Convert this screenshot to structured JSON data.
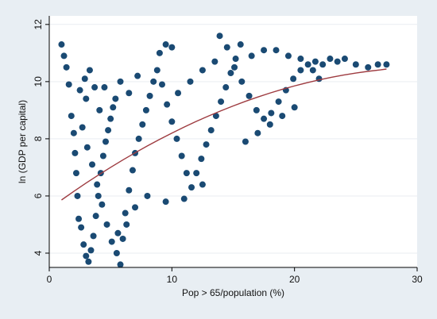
{
  "chart_data": {
    "type": "scatter",
    "title": "",
    "xlabel": "Pop > 65/population (%)",
    "ylabel": "ln (GDP per capital)",
    "xlim": [
      0,
      30
    ],
    "ylim": [
      3.5,
      12.3
    ],
    "xticks": [
      0,
      10,
      20,
      30
    ],
    "yticks": [
      4,
      6,
      8,
      10,
      12
    ],
    "grid": true,
    "legend": "none",
    "colors": {
      "outer_background": "#e8eef3",
      "plot_background": "#ffffff",
      "gridline": "#e9eef2",
      "points": "#1a4a73",
      "fit_line": "#9e3b40"
    },
    "series": [
      {
        "kind": "points",
        "points": [
          [
            1.0,
            11.3
          ],
          [
            1.2,
            10.9
          ],
          [
            1.4,
            10.5
          ],
          [
            1.6,
            9.9
          ],
          [
            1.8,
            8.8
          ],
          [
            2.0,
            8.2
          ],
          [
            2.1,
            7.5
          ],
          [
            2.2,
            6.8
          ],
          [
            2.3,
            6.0
          ],
          [
            2.4,
            5.2
          ],
          [
            2.6,
            4.9
          ],
          [
            2.8,
            4.3
          ],
          [
            3.0,
            3.9
          ],
          [
            3.2,
            3.7
          ],
          [
            3.4,
            4.1
          ],
          [
            3.6,
            4.6
          ],
          [
            3.8,
            5.3
          ],
          [
            4.0,
            6.0
          ],
          [
            4.2,
            6.8
          ],
          [
            4.4,
            7.4
          ],
          [
            4.6,
            7.9
          ],
          [
            4.8,
            8.3
          ],
          [
            5.0,
            8.7
          ],
          [
            5.2,
            9.1
          ],
          [
            5.4,
            9.4
          ],
          [
            2.5,
            9.7
          ],
          [
            2.9,
            10.1
          ],
          [
            3.3,
            10.4
          ],
          [
            3.7,
            9.8
          ],
          [
            4.1,
            9.0
          ],
          [
            2.7,
            8.4
          ],
          [
            3.1,
            7.7
          ],
          [
            3.5,
            7.1
          ],
          [
            3.9,
            6.4
          ],
          [
            4.3,
            5.7
          ],
          [
            4.7,
            5.0
          ],
          [
            5.1,
            4.4
          ],
          [
            5.5,
            4.0
          ],
          [
            5.8,
            3.6
          ],
          [
            6.0,
            4.5
          ],
          [
            6.2,
            5.4
          ],
          [
            6.5,
            6.2
          ],
          [
            6.8,
            6.9
          ],
          [
            7.0,
            7.5
          ],
          [
            7.3,
            8.0
          ],
          [
            7.6,
            8.5
          ],
          [
            7.9,
            9.0
          ],
          [
            8.2,
            9.5
          ],
          [
            8.5,
            10.0
          ],
          [
            8.8,
            10.4
          ],
          [
            9.0,
            11.0
          ],
          [
            9.5,
            11.3
          ],
          [
            10.0,
            11.2
          ],
          [
            9.2,
            9.9
          ],
          [
            9.6,
            9.2
          ],
          [
            10.0,
            8.6
          ],
          [
            10.4,
            8.0
          ],
          [
            10.8,
            7.4
          ],
          [
            11.2,
            6.8
          ],
          [
            11.6,
            6.3
          ],
          [
            12.0,
            6.8
          ],
          [
            12.4,
            7.3
          ],
          [
            12.8,
            7.8
          ],
          [
            13.2,
            8.3
          ],
          [
            13.6,
            8.8
          ],
          [
            14.0,
            9.3
          ],
          [
            14.4,
            9.8
          ],
          [
            14.8,
            10.3
          ],
          [
            15.2,
            10.8
          ],
          [
            15.6,
            11.3
          ],
          [
            13.9,
            11.6
          ],
          [
            14.5,
            11.2
          ],
          [
            15.1,
            10.5
          ],
          [
            15.7,
            10.0
          ],
          [
            16.3,
            9.5
          ],
          [
            16.9,
            9.0
          ],
          [
            17.5,
            8.7
          ],
          [
            18.1,
            8.9
          ],
          [
            18.7,
            9.3
          ],
          [
            19.3,
            9.7
          ],
          [
            19.9,
            10.1
          ],
          [
            20.5,
            10.4
          ],
          [
            21.1,
            10.6
          ],
          [
            21.7,
            10.7
          ],
          [
            22.3,
            10.6
          ],
          [
            22.9,
            10.8
          ],
          [
            23.5,
            10.7
          ],
          [
            24.1,
            10.8
          ],
          [
            25.0,
            10.6
          ],
          [
            26.0,
            10.5
          ],
          [
            26.8,
            10.6
          ],
          [
            27.5,
            10.6
          ],
          [
            16.0,
            7.9
          ],
          [
            17.0,
            8.2
          ],
          [
            18.0,
            8.5
          ],
          [
            19.0,
            8.8
          ],
          [
            20.0,
            9.1
          ],
          [
            12.5,
            6.4
          ],
          [
            11.0,
            5.9
          ],
          [
            9.5,
            5.8
          ],
          [
            8.0,
            6.0
          ],
          [
            7.0,
            5.6
          ],
          [
            6.3,
            5.0
          ],
          [
            5.6,
            4.7
          ],
          [
            10.5,
            9.6
          ],
          [
            11.5,
            10.0
          ],
          [
            12.5,
            10.4
          ],
          [
            13.5,
            10.7
          ],
          [
            16.5,
            10.9
          ],
          [
            17.5,
            11.1
          ],
          [
            18.5,
            11.1
          ],
          [
            19.5,
            10.9
          ],
          [
            20.5,
            10.8
          ],
          [
            21.5,
            10.4
          ],
          [
            22.0,
            10.1
          ],
          [
            6.5,
            9.6
          ],
          [
            7.2,
            10.2
          ],
          [
            5.8,
            10.0
          ],
          [
            4.5,
            9.8
          ],
          [
            3.0,
            9.4
          ]
        ]
      },
      {
        "kind": "fit_line",
        "points": [
          [
            1,
            5.86
          ],
          [
            2,
            6.16
          ],
          [
            3,
            6.45
          ],
          [
            4,
            6.73
          ],
          [
            5,
            7.0
          ],
          [
            6,
            7.26
          ],
          [
            7,
            7.51
          ],
          [
            8,
            7.75
          ],
          [
            9,
            7.98
          ],
          [
            10,
            8.2
          ],
          [
            11,
            8.41
          ],
          [
            12,
            8.61
          ],
          [
            13,
            8.8
          ],
          [
            14,
            8.98
          ],
          [
            15,
            9.15
          ],
          [
            16,
            9.31
          ],
          [
            17,
            9.46
          ],
          [
            18,
            9.6
          ],
          [
            19,
            9.73
          ],
          [
            20,
            9.85
          ],
          [
            21,
            9.96
          ],
          [
            22,
            10.06
          ],
          [
            23,
            10.15
          ],
          [
            24,
            10.23
          ],
          [
            25,
            10.3
          ],
          [
            26,
            10.36
          ],
          [
            27,
            10.41
          ],
          [
            27.5,
            10.44
          ]
        ]
      }
    ]
  }
}
